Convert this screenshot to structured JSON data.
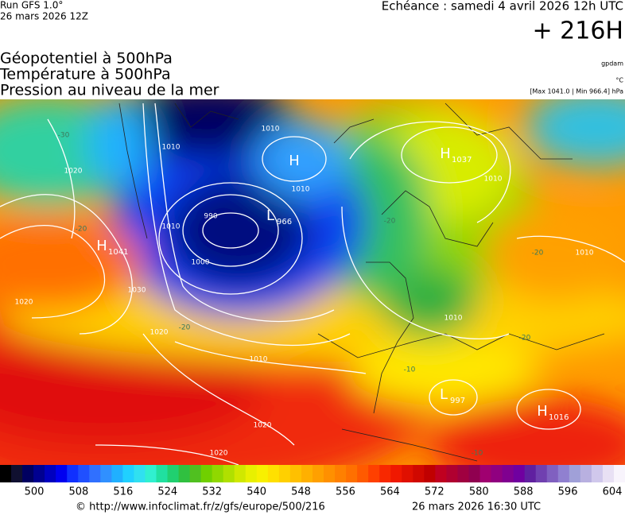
{
  "header": {
    "run": "Run GFS 1.0°",
    "run_date": "26 mars 2026 12Z",
    "valid": "Echéance : samedi 4 avril 2026 12h UTC",
    "lead": "+ 216H"
  },
  "fields": [
    "Géopotentiel à 500hPa",
    "Température à 500hPa",
    "Pression au niveau de la mer"
  ],
  "units": {
    "geopotential": "gpdam",
    "temperature": "°C",
    "pressure": "[Max 1041.0 | Min 966.4] hPa"
  },
  "pressure_centers": [
    {
      "letter": "H",
      "value": "1041"
    },
    {
      "letter": "H",
      "value": "1037"
    },
    {
      "letter": "H"
    },
    {
      "letter": "L",
      "value": "966"
    },
    {
      "letter": "L",
      "value": "997"
    },
    {
      "letter": "H",
      "value": "1016"
    }
  ],
  "isobar_labels": [
    "1010",
    "1020",
    "1010",
    "990",
    "1000",
    "1010",
    "1010",
    "1020",
    "1030",
    "1020",
    "1020",
    "1010",
    "1020",
    "1010",
    "1010",
    "1010"
  ],
  "temperature_labels": [
    "-30",
    "-20",
    "-20",
    "-20",
    "-20",
    "-10",
    "-20",
    "-10"
  ],
  "scale": {
    "labels": [
      "500",
      "508",
      "516",
      "524",
      "532",
      "540",
      "548",
      "556",
      "564",
      "572",
      "580",
      "588",
      "596",
      "604"
    ],
    "colors": [
      "#000000",
      "#101030",
      "#000060",
      "#000090",
      "#0000c0",
      "#0000f0",
      "#1030ff",
      "#2050ff",
      "#3070ff",
      "#3090ff",
      "#20b0ff",
      "#20d0ff",
      "#30e0f0",
      "#30f0d0",
      "#20e0a0",
      "#20d070",
      "#30c040",
      "#50c020",
      "#70d000",
      "#90d800",
      "#b0e000",
      "#d0e800",
      "#e8f000",
      "#f8f000",
      "#ffe000",
      "#ffd000",
      "#ffc000",
      "#ffb000",
      "#ffa000",
      "#ff9000",
      "#ff8000",
      "#ff7000",
      "#ff5a00",
      "#ff4000",
      "#f82800",
      "#f01800",
      "#e01000",
      "#d00800",
      "#c00000",
      "#c00020",
      "#b00030",
      "#a00040",
      "#900050",
      "#a00070",
      "#900080",
      "#800090",
      "#7000a0",
      "#6020a0",
      "#7040b0",
      "#8060c0",
      "#9080d0",
      "#a0a0d8",
      "#b8b0e0",
      "#d0c8ec",
      "#e8e0f4",
      "#f8f4fc"
    ]
  },
  "footer": {
    "source": "© http://www.infoclimat.fr/z/gfs/europe/500/216",
    "generated": "26 mars 2026 16:30 UTC"
  }
}
